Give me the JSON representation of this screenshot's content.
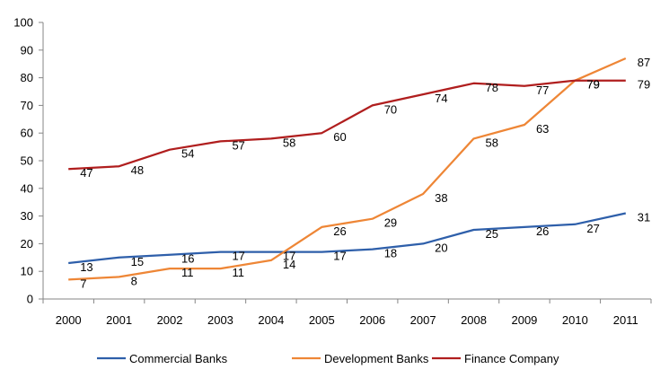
{
  "chart_data": {
    "type": "line",
    "categories": [
      "2000",
      "2001",
      "2002",
      "2003",
      "2004",
      "2005",
      "2006",
      "2007",
      "2008",
      "2009",
      "2010",
      "2011"
    ],
    "ylim": [
      0,
      100
    ],
    "yticks": [
      0,
      10,
      20,
      30,
      40,
      50,
      60,
      70,
      80,
      90,
      100
    ],
    "series": [
      {
        "name": "Commercial Banks",
        "color": "#2e5faa",
        "values": [
          13,
          15,
          16,
          17,
          17,
          17,
          18,
          20,
          25,
          26,
          27,
          31
        ]
      },
      {
        "name": "Development Banks",
        "color": "#ee8636",
        "values": [
          7,
          8,
          11,
          11,
          14,
          26,
          29,
          38,
          58,
          63,
          79,
          87
        ]
      },
      {
        "name": "Finance Company",
        "color": "#b01e1e",
        "values": [
          47,
          48,
          54,
          57,
          58,
          60,
          70,
          74,
          78,
          77,
          79,
          79
        ]
      }
    ],
    "legend_position": "bottom",
    "grid": false
  }
}
